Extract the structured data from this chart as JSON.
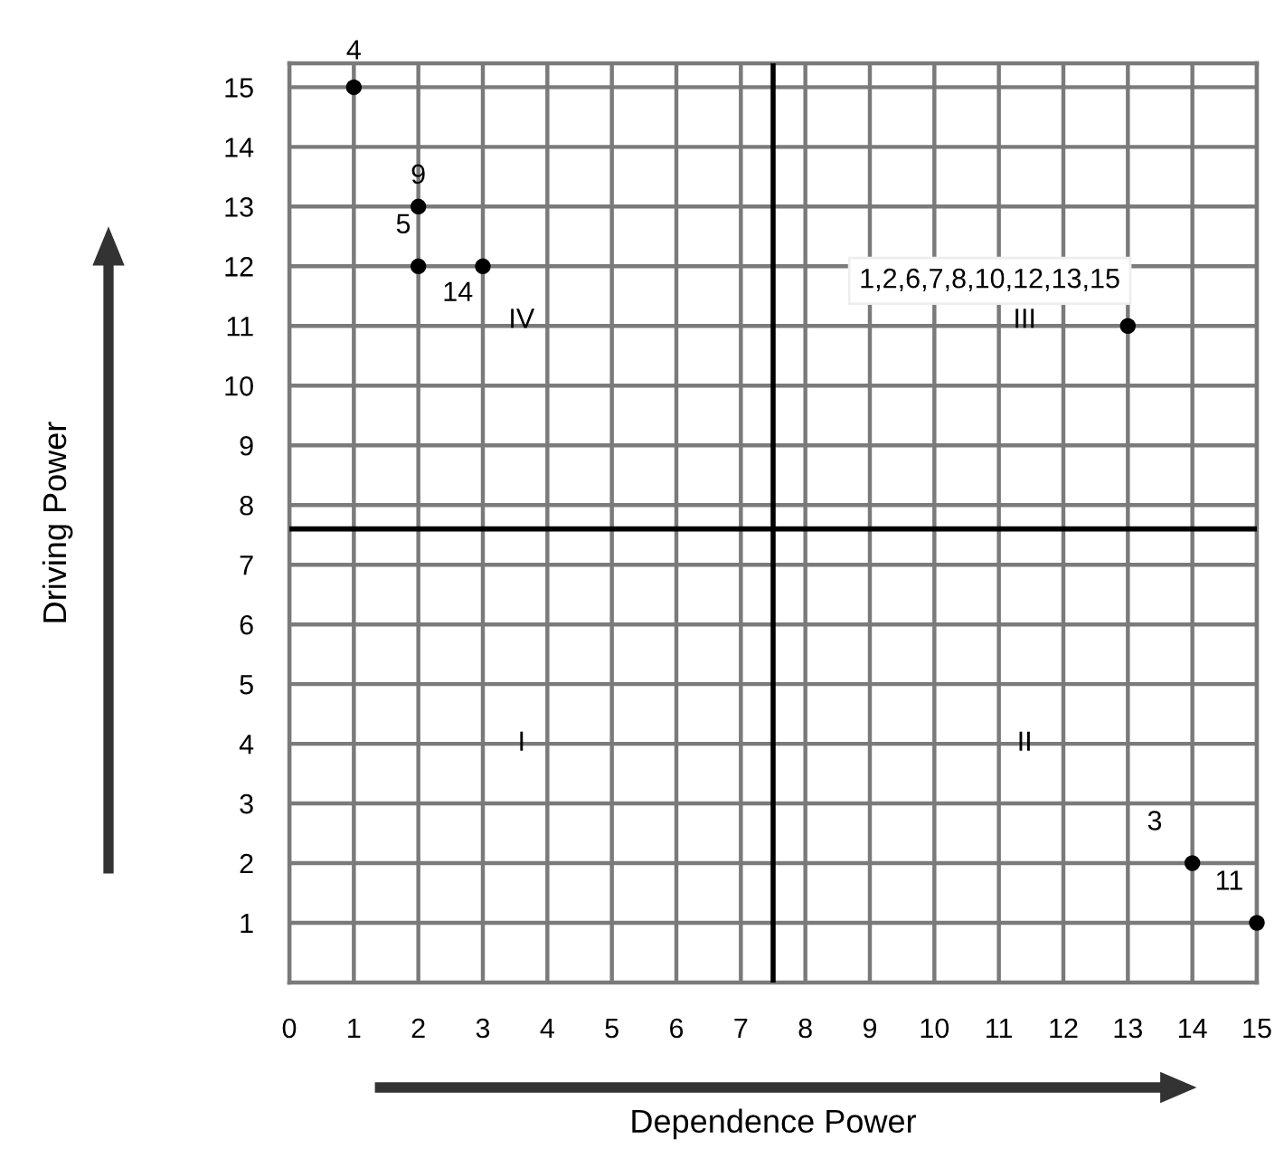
{
  "chart_data": {
    "type": "scatter",
    "xlabel": "Dependence Power",
    "ylabel": "Driving Power",
    "series": [
      {
        "color": "#000000",
        "x": [
          1,
          2,
          2,
          3,
          13,
          14,
          15
        ],
        "values": [
          15,
          13,
          12,
          12,
          11,
          2,
          1
        ]
      }
    ],
    "xlim": [
      0,
      15
    ],
    "ylim": [
      0,
      15.4
    ],
    "xticks": [
      0,
      1,
      2,
      3,
      4,
      5,
      6,
      7,
      8,
      9,
      10,
      11,
      12,
      13,
      14,
      15
    ],
    "yticks": [
      1,
      2,
      3,
      4,
      5,
      6,
      7,
      8,
      9,
      10,
      11,
      12,
      13,
      14,
      15
    ],
    "grid": true,
    "marker": "circle",
    "ref_lines": [
      {
        "axis": "x",
        "value": 7.5,
        "color": "#000000"
      },
      {
        "axis": "y",
        "value": 7.6,
        "color": "#000000"
      }
    ],
    "annotations": [
      {
        "text": "4",
        "x": 1,
        "y": 15
      },
      {
        "text": "9",
        "x": 2,
        "y": 13
      },
      {
        "text": "5",
        "x": 2,
        "y": 12
      },
      {
        "text": "14",
        "x": 3,
        "y": 12
      },
      {
        "text": "1,2,6,7,8,10,12,13,15",
        "x": 13,
        "y": 11
      },
      {
        "text": "3",
        "x": 14,
        "y": 2
      },
      {
        "text": "11",
        "x": 15,
        "y": 1
      },
      "IV",
      "III",
      "I",
      "II"
    ]
  }
}
